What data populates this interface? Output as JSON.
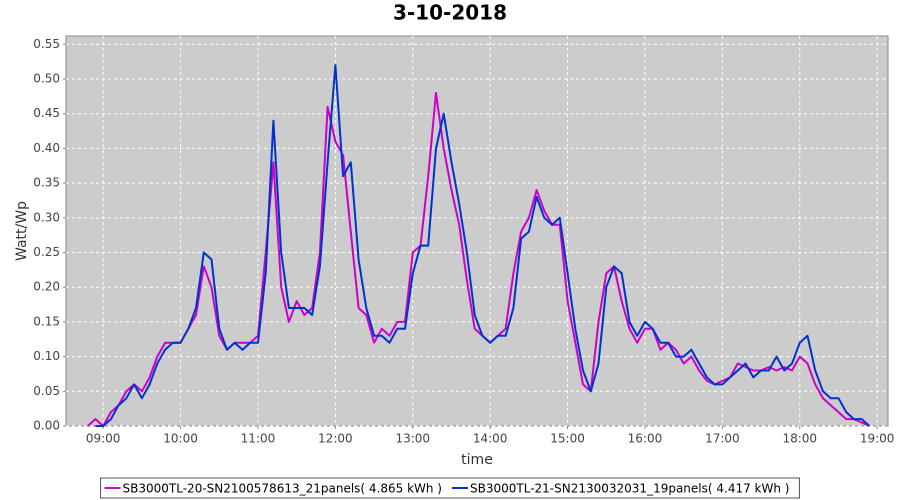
{
  "chart_data": {
    "type": "line",
    "title": "3-10-2018",
    "xlabel": "time",
    "ylabel": "Watt/Wp",
    "x": [
      8.8,
      8.9,
      9.0,
      9.1,
      9.2,
      9.3,
      9.4,
      9.5,
      9.6,
      9.7,
      9.8,
      9.9,
      10.0,
      10.1,
      10.2,
      10.3,
      10.4,
      10.5,
      10.6,
      10.7,
      10.8,
      10.9,
      11.0,
      11.1,
      11.2,
      11.3,
      11.4,
      11.5,
      11.6,
      11.7,
      11.8,
      11.9,
      12.0,
      12.1,
      12.2,
      12.3,
      12.4,
      12.5,
      12.6,
      12.7,
      12.8,
      12.9,
      13.0,
      13.1,
      13.2,
      13.3,
      13.4,
      13.5,
      13.6,
      13.7,
      13.8,
      13.9,
      14.0,
      14.1,
      14.2,
      14.3,
      14.4,
      14.5,
      14.6,
      14.7,
      14.8,
      14.9,
      15.0,
      15.1,
      15.2,
      15.3,
      15.4,
      15.5,
      15.6,
      15.7,
      15.8,
      15.9,
      16.0,
      16.1,
      16.2,
      16.3,
      16.4,
      16.5,
      16.6,
      16.7,
      16.8,
      16.9,
      17.0,
      17.1,
      17.2,
      17.3,
      17.4,
      17.5,
      17.6,
      17.7,
      17.8,
      17.9,
      18.0,
      18.1,
      18.2,
      18.3,
      18.4,
      18.5,
      18.6,
      18.7,
      18.8,
      18.9
    ],
    "series": [
      {
        "name": "SB3000TL-20-SN2100578613_21panels( 4.865 kWh )",
        "color": "#cc00cc",
        "values": [
          0.0,
          0.01,
          0.0,
          0.02,
          0.03,
          0.05,
          0.06,
          0.05,
          0.07,
          0.1,
          0.12,
          0.12,
          0.12,
          0.14,
          0.16,
          0.23,
          0.2,
          0.13,
          0.11,
          0.12,
          0.12,
          0.12,
          0.13,
          0.25,
          0.38,
          0.2,
          0.15,
          0.18,
          0.16,
          0.17,
          0.25,
          0.46,
          0.41,
          0.39,
          0.28,
          0.17,
          0.16,
          0.12,
          0.14,
          0.13,
          0.15,
          0.15,
          0.25,
          0.26,
          0.36,
          0.48,
          0.4,
          0.34,
          0.29,
          0.21,
          0.14,
          0.13,
          0.12,
          0.13,
          0.14,
          0.22,
          0.28,
          0.3,
          0.34,
          0.31,
          0.29,
          0.29,
          0.18,
          0.12,
          0.06,
          0.05,
          0.15,
          0.22,
          0.23,
          0.18,
          0.14,
          0.12,
          0.14,
          0.14,
          0.11,
          0.12,
          0.11,
          0.09,
          0.1,
          0.08,
          0.065,
          0.06,
          0.065,
          0.07,
          0.09,
          0.085,
          0.08,
          0.08,
          0.085,
          0.08,
          0.085,
          0.08,
          0.1,
          0.09,
          0.06,
          0.04,
          0.03,
          0.02,
          0.01,
          0.01,
          0.005,
          0.0
        ]
      },
      {
        "name": "SB3000TL-21-SN2130032031_19panels( 4.417 kWh )",
        "color": "#0033cc",
        "values": [
          null,
          0.0,
          0.0,
          0.01,
          0.03,
          0.04,
          0.06,
          0.04,
          0.06,
          0.09,
          0.11,
          0.12,
          0.12,
          0.14,
          0.17,
          0.25,
          0.24,
          0.14,
          0.11,
          0.12,
          0.11,
          0.12,
          0.12,
          0.22,
          0.44,
          0.25,
          0.17,
          0.17,
          0.17,
          0.16,
          0.23,
          0.38,
          0.52,
          0.36,
          0.38,
          0.24,
          0.17,
          0.13,
          0.13,
          0.12,
          0.14,
          0.14,
          0.22,
          0.26,
          0.26,
          0.4,
          0.45,
          0.38,
          0.32,
          0.25,
          0.16,
          0.13,
          0.12,
          0.13,
          0.13,
          0.17,
          0.27,
          0.28,
          0.33,
          0.3,
          0.29,
          0.3,
          0.22,
          0.14,
          0.08,
          0.05,
          0.09,
          0.2,
          0.23,
          0.22,
          0.15,
          0.13,
          0.15,
          0.14,
          0.12,
          0.12,
          0.1,
          0.1,
          0.11,
          0.09,
          0.07,
          0.06,
          0.06,
          0.07,
          0.08,
          0.09,
          0.07,
          0.08,
          0.08,
          0.1,
          0.08,
          0.09,
          0.12,
          0.13,
          0.08,
          0.05,
          0.04,
          0.04,
          0.02,
          0.01,
          0.01,
          0.0
        ]
      }
    ],
    "xlim": [
      8.52,
      19.14
    ],
    "xticks": [
      {
        "value": 9,
        "label": "09:00"
      },
      {
        "value": 10,
        "label": "10:00"
      },
      {
        "value": 11,
        "label": "11:00"
      },
      {
        "value": 12,
        "label": "12:00"
      },
      {
        "value": 13,
        "label": "13:00"
      },
      {
        "value": 14,
        "label": "14:00"
      },
      {
        "value": 15,
        "label": "15:00"
      },
      {
        "value": 16,
        "label": "16:00"
      },
      {
        "value": 17,
        "label": "17:00"
      },
      {
        "value": 18,
        "label": "18:00"
      },
      {
        "value": 19,
        "label": "19:00"
      }
    ],
    "ylim": [
      0,
      0.562
    ],
    "yticks": [
      {
        "value": 0,
        "label": "0.00"
      },
      {
        "value": 0.05,
        "label": "0.05"
      },
      {
        "value": 0.1,
        "label": "0.10"
      },
      {
        "value": 0.15,
        "label": "0.15"
      },
      {
        "value": 0.2,
        "label": "0.20"
      },
      {
        "value": 0.25,
        "label": "0.25"
      },
      {
        "value": 0.3,
        "label": "0.30"
      },
      {
        "value": 0.35,
        "label": "0.35"
      },
      {
        "value": 0.4,
        "label": "0.40"
      },
      {
        "value": 0.45,
        "label": "0.45"
      },
      {
        "value": 0.5,
        "label": "0.50"
      },
      {
        "value": 0.55,
        "label": "0.55"
      }
    ],
    "grid": true,
    "legend": "bottom"
  }
}
